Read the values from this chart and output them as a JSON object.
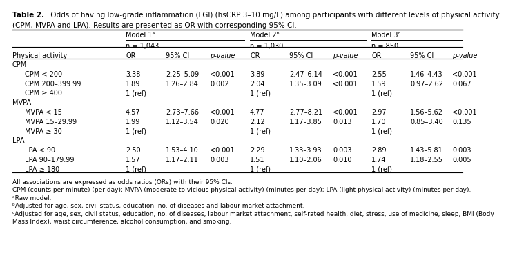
{
  "title_bold": "Table 2.",
  "title_rest": " Odds of having low-grade inflammation (LGI) (hsCRP 3–10 mg/L) among participants with different levels of physical activity\n(CPM, MVPA and LPA). Results are presented as OR with corresponding 95% CI.",
  "model1_label": "Model 1ᵃ",
  "model1_sub": "n = 1,043",
  "model2_label": "Model 2ᵇ",
  "model2_sub": "n = 1,030",
  "model3_label": "Model 3ᶜ",
  "model3_sub": "n = 850",
  "col_header_row": [
    "Physical activity",
    "OR",
    "95% CI",
    "p-value",
    "OR",
    "95% CI",
    "p-value",
    "OR",
    "95% CI",
    "p-value"
  ],
  "rows": [
    {
      "label": "CPM",
      "section": true,
      "data": [
        "",
        "",
        "",
        "",
        "",
        "",
        "",
        "",
        ""
      ]
    },
    {
      "label": "CPM < 200",
      "section": false,
      "data": [
        "3.38",
        "2.25–5.09",
        "<0.001",
        "3.89",
        "2.47–6.14",
        "<0.001",
        "2.55",
        "1.46–4.43",
        "<0.001"
      ]
    },
    {
      "label": "CPM 200–399.99",
      "section": false,
      "data": [
        "1.89",
        "1.26–2.84",
        "0.002",
        "2.04",
        "1.35–3.09",
        "<0.001",
        "1.59",
        "0.97–2.62",
        "0.067"
      ]
    },
    {
      "label": "CPM ≥ 400",
      "section": false,
      "data": [
        "1 (ref)",
        "",
        "",
        "1 (ref)",
        "",
        "",
        "1 (ref)",
        "",
        ""
      ]
    },
    {
      "label": "MVPA",
      "section": true,
      "data": [
        "",
        "",
        "",
        "",
        "",
        "",
        "",
        "",
        ""
      ]
    },
    {
      "label": "MVPA < 15",
      "section": false,
      "data": [
        "4.57",
        "2.73–7.66",
        "<0.001",
        "4.77",
        "2.77–8.21",
        "<0.001",
        "2.97",
        "1.56–5.62",
        "<0.001"
      ]
    },
    {
      "label": "MVPA 15–29.99",
      "section": false,
      "data": [
        "1.99",
        "1.12–3.54",
        "0.020",
        "2.12",
        "1.17–3.85",
        "0.013",
        "1.70",
        "0.85–3.40",
        "0.135"
      ]
    },
    {
      "label": "MVPA ≥ 30",
      "section": false,
      "data": [
        "1 (ref)",
        "",
        "",
        "1 (ref)",
        "",
        "",
        "1 (ref)",
        "",
        ""
      ]
    },
    {
      "label": "LPA",
      "section": true,
      "data": [
        "",
        "",
        "",
        "",
        "",
        "",
        "",
        "",
        ""
      ]
    },
    {
      "label": "LPA < 90",
      "section": false,
      "data": [
        "2.50",
        "1.53–4.10",
        "<0.001",
        "2.29",
        "1.33–3.93",
        "0.003",
        "2.89",
        "1.43–5.81",
        "0.003"
      ]
    },
    {
      "label": "LPA 90–179.99",
      "section": false,
      "data": [
        "1.57",
        "1.17–2.11",
        "0.003",
        "1.51",
        "1.10–2.06",
        "0.010",
        "1.74",
        "1.18–2.55",
        "0.005"
      ]
    },
    {
      "label": "LPA ≥ 180",
      "section": false,
      "data": [
        "1 (ref)",
        "",
        "",
        "1 (ref)",
        "",
        "",
        "1 (ref)",
        "",
        ""
      ]
    }
  ],
  "footnotes": [
    "All associations are expressed as odds ratios (ORs) with their 95% CIs.",
    "CPM (counts per minute) (per day); MVPA (moderate to vicious physical activity) (minutes per day); LPA (light physical activity) (minutes per day).",
    "ᵃRaw model.",
    "ᵇAdjusted for age, sex, civil status, education, no. of diseases and labour market attachment.",
    "ᶜAdjusted for age, sex, civil status, education, no. of diseases, labour market attachment, self-rated health, diet, stress, use of medicine, sleep, BMI (Body",
    "Mass Index), waist circumference, alcohol consumption, and smoking."
  ],
  "bg_color": "#ffffff",
  "text_color": "#000000",
  "font_size": 7.0,
  "title_font_size": 7.5
}
